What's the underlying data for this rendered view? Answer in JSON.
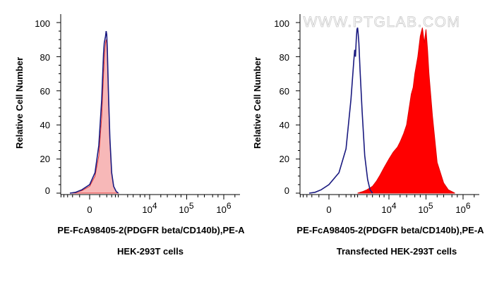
{
  "watermark": "WWW.PTGLAB.COM",
  "chart_data": [
    {
      "type": "area",
      "ylabel": "Relative Cell Number",
      "xlabel": "PE-FcA98405-2(PDGFR beta/CD140b),PE-A",
      "subtitle": "HEK-293T cells",
      "ylim": [
        0,
        100
      ],
      "y_ticks": [
        "0",
        "20",
        "40",
        "60",
        "80",
        "100"
      ],
      "x_ticks": [
        {
          "base": "0",
          "exp": ""
        },
        {
          "base": "10",
          "exp": "4"
        },
        {
          "base": "10",
          "exp": "5"
        },
        {
          "base": "10",
          "exp": "6"
        }
      ],
      "grid": false,
      "series": [
        {
          "style": "filled",
          "color": "#f7b8b8",
          "edge_color": "#e03030",
          "x": [
            "-500",
            "-300",
            "-150",
            "0",
            "100",
            "180",
            "250",
            "300",
            "330",
            "360",
            "380",
            "400",
            "420",
            "440",
            "470",
            "520",
            "600",
            "700",
            "850",
            "1000"
          ],
          "values": [
            0,
            0.5,
            1.5,
            4,
            10,
            22,
            45,
            70,
            82,
            88,
            90,
            88,
            82,
            70,
            52,
            30,
            12,
            4,
            1,
            0
          ]
        },
        {
          "style": "line",
          "color": "#1a1a80",
          "x": [
            "-500",
            "-300",
            "-150",
            "0",
            "100",
            "180",
            "250",
            "300",
            "320",
            "340",
            "360",
            "380",
            "400",
            "420",
            "440",
            "470",
            "520",
            "600",
            "700",
            "850",
            "1000"
          ],
          "values": [
            0,
            0.5,
            2,
            5,
            12,
            28,
            55,
            82,
            88,
            90,
            92,
            95,
            93,
            85,
            72,
            55,
            32,
            12,
            4,
            1,
            0
          ]
        }
      ]
    },
    {
      "type": "area",
      "ylabel": "Relative Cell Number",
      "xlabel": "PE-FcA98405-2(PDGFR beta/CD140b),PE-A",
      "subtitle": "Transfected HEK-293T cells",
      "ylim": [
        0,
        100
      ],
      "y_ticks": [
        "0",
        "20",
        "40",
        "60",
        "80",
        "100"
      ],
      "x_ticks": [
        {
          "base": "0",
          "exp": ""
        },
        {
          "base": "10",
          "exp": "4"
        },
        {
          "base": "10",
          "exp": "5"
        },
        {
          "base": "10",
          "exp": "6"
        }
      ],
      "grid": false,
      "series": [
        {
          "style": "filled",
          "color": "#ff0000",
          "edge_color": "#e00000",
          "x": [
            "1000",
            "1500",
            "2000",
            "3000",
            "4000",
            "5000",
            "7000",
            "10000",
            "13000",
            "17000",
            "20000",
            "25000",
            "30000",
            "40000",
            "45000",
            "50000",
            "60000",
            "70000",
            "80000",
            "90000",
            "100000",
            "110000",
            "120000",
            "150000",
            "200000",
            "300000",
            "400000",
            "600000"
          ],
          "values": [
            0,
            1,
            2,
            4,
            7,
            10,
            15,
            20,
            24,
            27,
            30,
            35,
            40,
            58,
            62,
            70,
            80,
            92,
            97,
            88,
            96,
            84,
            70,
            45,
            18,
            6,
            2,
            0
          ],
          "log_bins": [
            "-1000",
            "-600",
            "-300",
            "0",
            "300",
            "600",
            "1000"
          ],
          "log_bin_values": [
            0,
            0.3,
            0.6,
            1,
            1.3,
            1.6,
            2
          ]
        },
        {
          "style": "line",
          "color": "#1a1a80",
          "x": [
            "-500",
            "-300",
            "-150",
            "0",
            "200",
            "400",
            "600",
            "750",
            "800",
            "850",
            "900",
            "950",
            "1000",
            "1050",
            "1100",
            "1200",
            "1400",
            "1700",
            "2100",
            "2500",
            "3000"
          ],
          "values": [
            0,
            0.5,
            2,
            5,
            12,
            26,
            55,
            78,
            84,
            80,
            90,
            96,
            97,
            93,
            88,
            72,
            48,
            22,
            8,
            2,
            0
          ]
        }
      ]
    }
  ]
}
